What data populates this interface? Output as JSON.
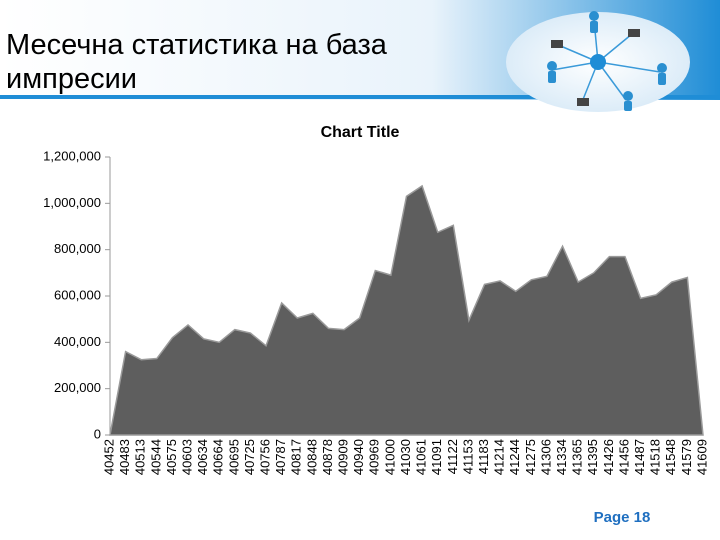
{
  "slide": {
    "title": "Месечна статистика на база импресии",
    "page_label": "Page 18"
  },
  "chart_data": {
    "type": "area",
    "title": "Chart Title",
    "categories": [
      "40452",
      "40483",
      "40513",
      "40544",
      "40575",
      "40603",
      "40634",
      "40664",
      "40695",
      "40725",
      "40756",
      "40787",
      "40817",
      "40848",
      "40878",
      "40909",
      "40940",
      "40969",
      "41000",
      "41030",
      "41061",
      "41091",
      "41122",
      "41153",
      "41183",
      "41214",
      "41244",
      "41275",
      "41306",
      "41334",
      "41365",
      "41395",
      "41426",
      "41456",
      "41487",
      "41518",
      "41548",
      "41579",
      "41609"
    ],
    "values": [
      0,
      360000,
      325000,
      330000,
      420000,
      475000,
      415000,
      400000,
      455000,
      440000,
      385000,
      570000,
      505000,
      525000,
      460000,
      455000,
      505000,
      710000,
      690000,
      1030000,
      1075000,
      875000,
      905000,
      495000,
      650000,
      665000,
      620000,
      670000,
      685000,
      815000,
      660000,
      700000,
      770000,
      770000,
      590000,
      605000,
      660000,
      680000,
      0
    ],
    "color": "#5e5e5e",
    "ylim": [
      0,
      1200000
    ],
    "yticks": [
      0,
      {
        "value": 200000,
        "label": "200,000"
      },
      {
        "value": 400000,
        "label": "400,000"
      },
      {
        "value": 600000,
        "label": "600,000"
      },
      {
        "value": 800000,
        "label": "800,000"
      },
      {
        "value": 1000000,
        "label": "1,000,000"
      },
      {
        "value": 1200000,
        "label": "1,200,000"
      }
    ],
    "grid": false
  }
}
